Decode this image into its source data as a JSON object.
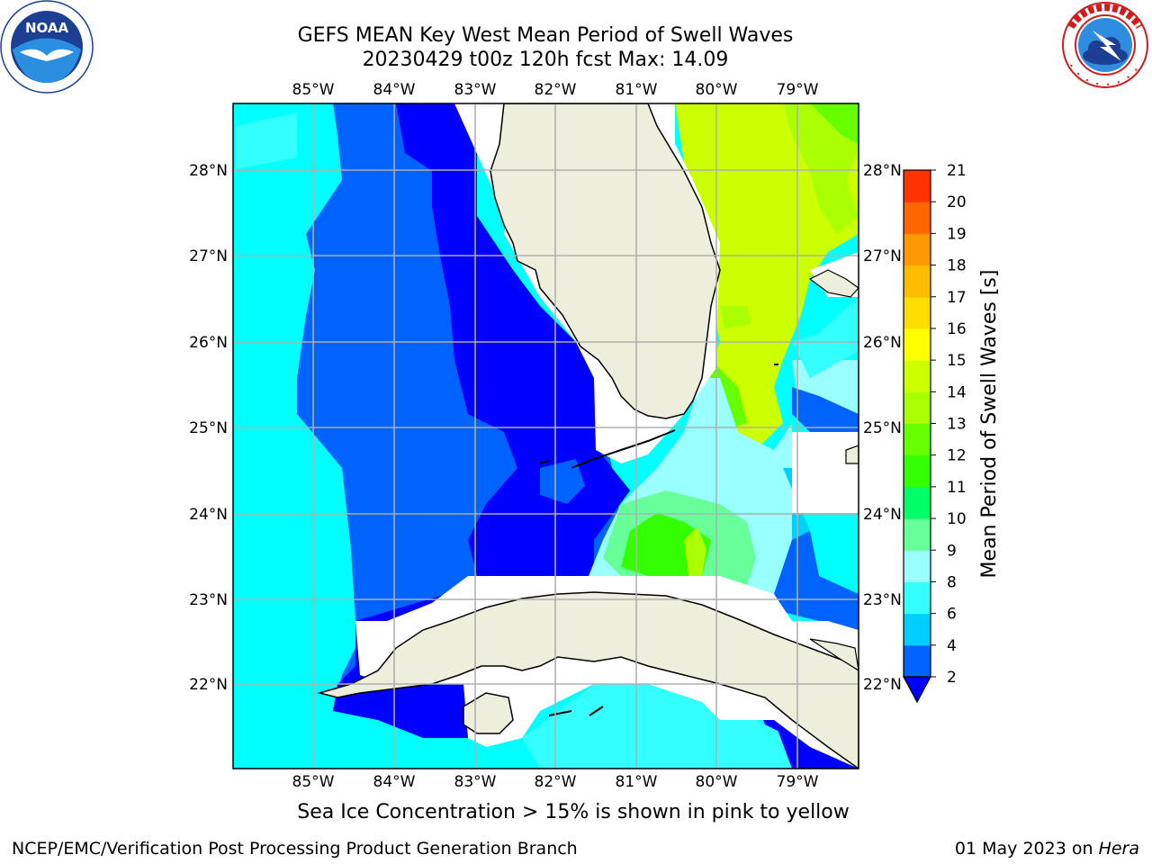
{
  "title": {
    "line1": "GEFS MEAN Key West Mean Period of Swell Waves",
    "line2": "20230429 t00z 120h fcst   Max: 14.09"
  },
  "logos": {
    "left": "noaa-logo",
    "right": "nws-logo",
    "left_text": "NOAA",
    "left_ring_text": "NATIONAL OCEANIC AND ATMOSPHERIC ADMINISTRATION • U.S. DEPARTMENT OF COMMERCE",
    "right_ring_text": "NATIONAL WEATHER SERVICE"
  },
  "map": {
    "lon_labels": [
      "85°W",
      "84°W",
      "83°W",
      "82°W",
      "81°W",
      "80°W",
      "79°W"
    ],
    "lat_labels": [
      "28°N",
      "27°N",
      "26°N",
      "25°N",
      "24°N",
      "23°N",
      "22°N"
    ],
    "land_color": "#eeeedd",
    "missing_color": "#ffffff",
    "grid_color": "#b0b0b0"
  },
  "colorbar": {
    "label": "Mean Period of Swell Waves [s]",
    "ticks": [
      "2",
      "4",
      "6",
      "8",
      "9",
      "10",
      "11",
      "12",
      "13",
      "14",
      "15",
      "16",
      "17",
      "18",
      "19",
      "20",
      "21"
    ],
    "colors": [
      "#0063ff",
      "#00d0ff",
      "#33ffff",
      "#99ffff",
      "#66ff99",
      "#00ff66",
      "#33ff00",
      "#66ff00",
      "#aaff00",
      "#ccff00",
      "#ffff00",
      "#ffdd00",
      "#ffbb00",
      "#ff9900",
      "#ff6600",
      "#ff3300"
    ],
    "under_color": "#0000ff"
  },
  "caption": "Sea Ice Concentration > 15% is shown in pink to yellow",
  "footer": {
    "left": "NCEP/EMC/Verification Post Processing Product Generation Branch",
    "date": "01 May 2023 on ",
    "machine": "Hera"
  }
}
